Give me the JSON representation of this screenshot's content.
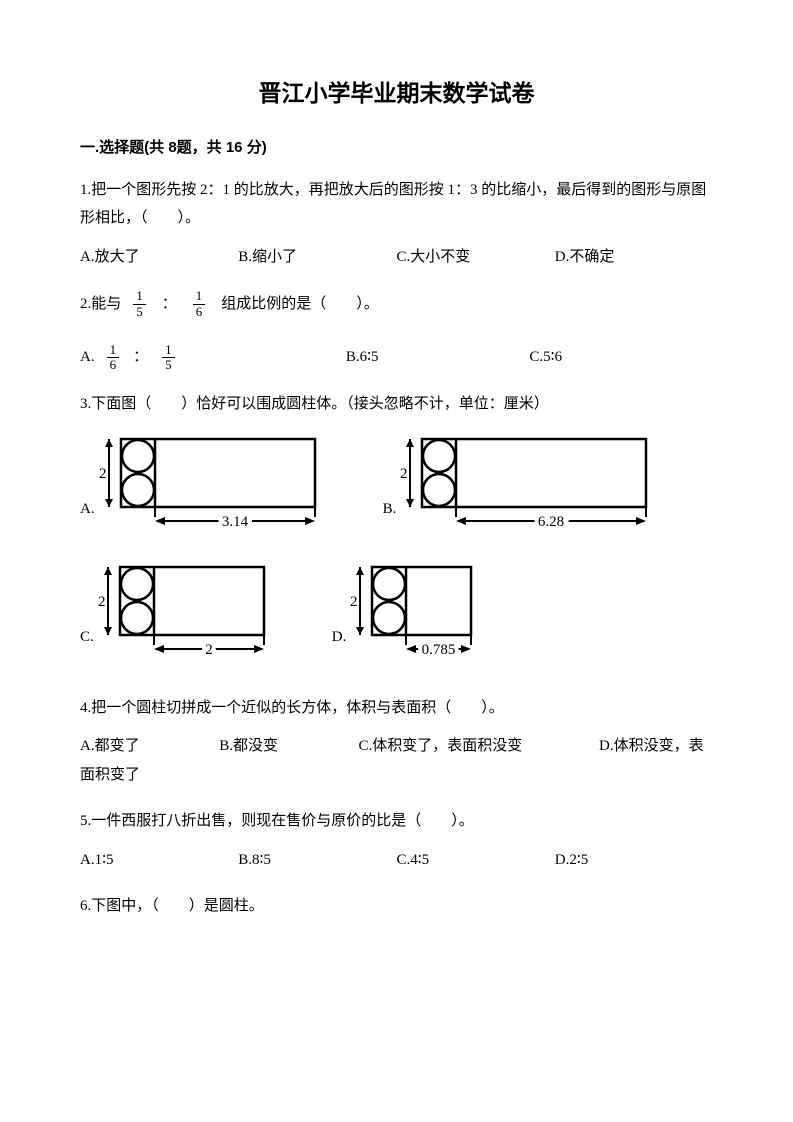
{
  "title": "晋江小学毕业期末数学试卷",
  "section1": {
    "header": "一.选择题(共 8题，共 16 分)",
    "q1": {
      "text": "1.把一个图形先按 2：1 的比放大，再把放大后的图形按 1：3 的比缩小，最后得到的图形与原图形相比，（　　）。",
      "opts": {
        "a": "A.放大了",
        "b": "B.缩小了",
        "c": "C.大小不变",
        "d": "D.不确定"
      }
    },
    "q2": {
      "prefix": "2.能与",
      "frac1n": "1",
      "frac1d": "5",
      "colon": "：",
      "frac2n": "1",
      "frac2d": "6",
      "suffix": "组成比例的是（　　）。",
      "optA_prefix": "A.",
      "optA_f1n": "1",
      "optA_f1d": "6",
      "optA_colon": "：",
      "optA_f2n": "1",
      "optA_f2d": "5",
      "optB": "B.6∶5",
      "optC": "C.5∶6"
    },
    "q3": {
      "text": "3.下面图（　　）恰好可以围成圆柱体。（接头忽略不计，单位：厘米）",
      "diagrams": {
        "A": {
          "label": "A.",
          "height": 68,
          "rect_w": 160,
          "dim_label": "3.14",
          "h_label": "2"
        },
        "B": {
          "label": "B.",
          "height": 68,
          "rect_w": 190,
          "dim_label": "6.28",
          "h_label": "2"
        },
        "C": {
          "label": "C.",
          "height": 68,
          "rect_w": 110,
          "dim_label": "2",
          "h_label": "2"
        },
        "D": {
          "label": "D.",
          "height": 68,
          "rect_w": 65,
          "dim_label": "0.785",
          "h_label": "2"
        }
      }
    },
    "q4": {
      "text": "4.把一个圆柱切拼成一个近似的长方体，体积与表面积（　　）。",
      "opts": {
        "a": "A.都变了",
        "b": "B.都没变",
        "c": "C.体积变了，表面积没变",
        "d": "D.体积没变，表面积变了"
      }
    },
    "q5": {
      "text": "5.一件西服打八折出售，则现在售价与原价的比是（　　）。",
      "opts": {
        "a": "A.1∶5",
        "b": "B.8∶5",
        "c": "C.4∶5",
        "d": "D.2∶5"
      }
    },
    "q6": {
      "text": "6.下图中，（　　）是圆柱。"
    }
  },
  "colors": {
    "text": "#000000",
    "bg": "#ffffff",
    "line": "#000000"
  }
}
